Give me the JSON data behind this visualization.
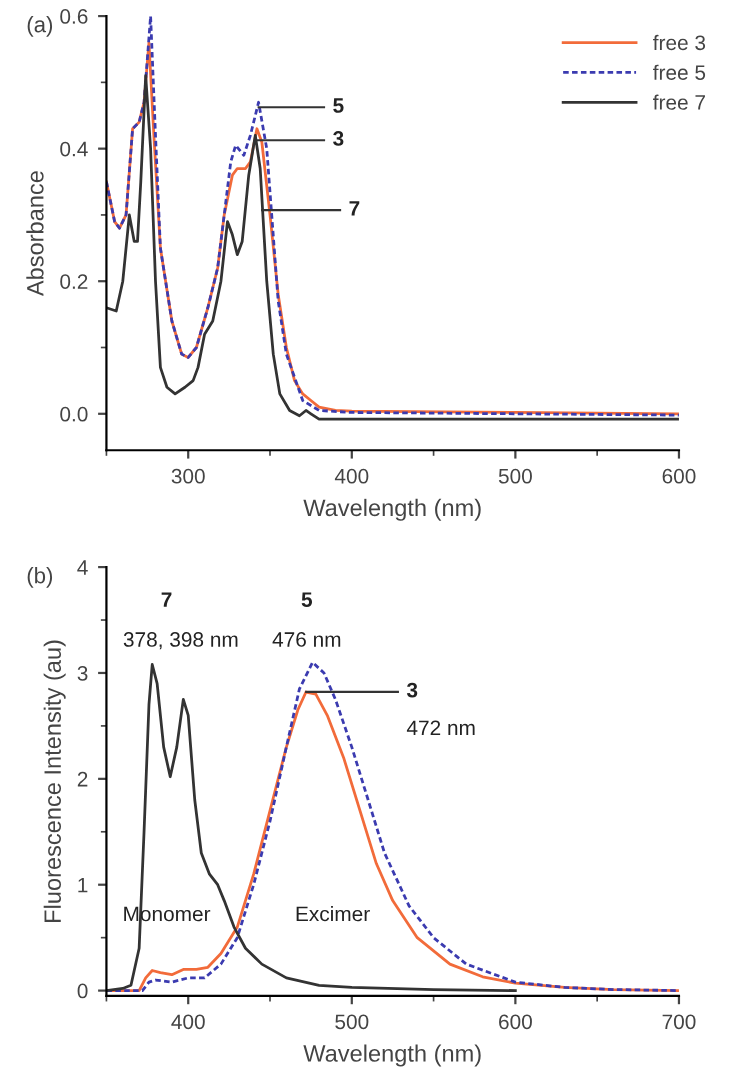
{
  "chart_data": [
    {
      "type": "line",
      "title": "(a)",
      "xlabel": "Wavelength (nm)",
      "ylabel": "Absorbance",
      "xlim": [
        250,
        600
      ],
      "xticks": [
        300,
        400,
        500,
        600
      ],
      "ylim": [
        -0.055,
        0.6
      ],
      "yticks": [
        {
          "value": 0,
          "label": "0.0"
        },
        0.2,
        0.4,
        0.6
      ],
      "legend": "top right",
      "grid": false,
      "series": [
        {
          "name": "free 3",
          "color": "#f26b3a",
          "line_style": "solid",
          "x": [
            250,
            255,
            258,
            262,
            266,
            270,
            273,
            276,
            279,
            283,
            290,
            296,
            300,
            305,
            312,
            318,
            322,
            327,
            330,
            335,
            338,
            342,
            345,
            350,
            355,
            360,
            365,
            370,
            375,
            380,
            390,
            400,
            500,
            600
          ],
          "values": [
            0.35,
            0.29,
            0.28,
            0.3,
            0.43,
            0.44,
            0.47,
            0.56,
            0.42,
            0.25,
            0.14,
            0.09,
            0.085,
            0.1,
            0.16,
            0.22,
            0.3,
            0.36,
            0.37,
            0.37,
            0.38,
            0.43,
            0.41,
            0.3,
            0.18,
            0.1,
            0.05,
            0.03,
            0.02,
            0.01,
            0.005,
            0.004,
            0.002,
            0.0
          ]
        },
        {
          "name": "free 5",
          "color": "#3b3bb0",
          "line_style": "dashed",
          "x": [
            250,
            255,
            258,
            262,
            266,
            270,
            273,
            277,
            280,
            283,
            290,
            296,
            300,
            305,
            312,
            318,
            322,
            326,
            329,
            334,
            338,
            343,
            348,
            355,
            360,
            370,
            380,
            400,
            600
          ],
          "values": [
            0.35,
            0.29,
            0.28,
            0.3,
            0.43,
            0.44,
            0.47,
            0.6,
            0.42,
            0.25,
            0.14,
            0.09,
            0.085,
            0.1,
            0.16,
            0.22,
            0.3,
            0.38,
            0.405,
            0.39,
            0.42,
            0.47,
            0.4,
            0.17,
            0.09,
            0.02,
            0.005,
            0.002,
            -0.002
          ]
        },
        {
          "name": "free 7",
          "color": "#333333",
          "line_style": "solid",
          "x": [
            250,
            256,
            260,
            264,
            267,
            269,
            271,
            274,
            277,
            280,
            283,
            287,
            292,
            298,
            303,
            306,
            310,
            315,
            320,
            324,
            327,
            330,
            333,
            337,
            341,
            344,
            348,
            352,
            356,
            362,
            368,
            372,
            375,
            380,
            600
          ],
          "values": [
            0.16,
            0.155,
            0.2,
            0.3,
            0.26,
            0.26,
            0.35,
            0.51,
            0.4,
            0.2,
            0.07,
            0.04,
            0.03,
            0.04,
            0.05,
            0.07,
            0.12,
            0.14,
            0.2,
            0.29,
            0.27,
            0.24,
            0.26,
            0.36,
            0.42,
            0.37,
            0.2,
            0.09,
            0.03,
            0.005,
            -0.003,
            0.005,
            0.0,
            -0.008,
            -0.008
          ]
        }
      ],
      "annotations": [
        "5",
        "3",
        "7"
      ]
    },
    {
      "type": "line",
      "title": "(b)",
      "xlabel": "Wavelength (nm)",
      "ylabel": "Fluorescence Intensity (au)",
      "xlim": [
        350,
        700
      ],
      "xticks": [
        400,
        500,
        600,
        700
      ],
      "ylim": [
        -0.05,
        4
      ],
      "yticks": [
        0,
        1,
        2,
        3,
        4
      ],
      "grid": false,
      "series": [
        {
          "color": "#f26b3a",
          "line_style": "solid",
          "x": [
            350,
            370,
            374,
            378,
            383,
            390,
            397,
            405,
            412,
            420,
            430,
            440,
            450,
            460,
            467,
            472,
            478,
            485,
            495,
            505,
            515,
            525,
            540,
            560,
            580,
            600,
            630,
            660,
            700
          ],
          "values": [
            0.0,
            0.0,
            0.12,
            0.19,
            0.17,
            0.15,
            0.2,
            0.2,
            0.22,
            0.35,
            0.6,
            1.1,
            1.7,
            2.3,
            2.65,
            2.82,
            2.8,
            2.6,
            2.2,
            1.7,
            1.2,
            0.85,
            0.5,
            0.25,
            0.13,
            0.07,
            0.03,
            0.01,
            0.0
          ]
        },
        {
          "color": "#3b3bb0",
          "line_style": "dashed",
          "x": [
            350,
            372,
            376,
            380,
            390,
            400,
            410,
            420,
            430,
            440,
            450,
            460,
            468,
            476,
            483,
            490,
            500,
            510,
            520,
            535,
            550,
            570,
            600,
            630,
            660,
            700
          ],
          "values": [
            0.0,
            0.0,
            0.08,
            0.1,
            0.08,
            0.12,
            0.12,
            0.25,
            0.5,
            1.0,
            1.6,
            2.3,
            2.85,
            3.1,
            3.0,
            2.75,
            2.3,
            1.8,
            1.3,
            0.8,
            0.5,
            0.25,
            0.08,
            0.03,
            0.01,
            0.0
          ]
        },
        {
          "color": "#333333",
          "line_style": "solid",
          "x": [
            350,
            360,
            365,
            370,
            373,
            376,
            378,
            381,
            385,
            389,
            393,
            397,
            400,
            404,
            408,
            413,
            418,
            422,
            428,
            435,
            445,
            460,
            480,
            500,
            550,
            600
          ],
          "values": [
            0.0,
            0.02,
            0.05,
            0.4,
            1.5,
            2.7,
            3.08,
            2.9,
            2.3,
            2.02,
            2.3,
            2.75,
            2.6,
            1.8,
            1.3,
            1.1,
            1.0,
            0.85,
            0.6,
            0.4,
            0.25,
            0.12,
            0.05,
            0.03,
            0.01,
            0.0
          ]
        }
      ],
      "annotations": [
        "7",
        "378, 398 nm",
        "5",
        "476 nm",
        "3",
        "472 nm",
        "Monomer",
        "Excimer"
      ]
    }
  ]
}
